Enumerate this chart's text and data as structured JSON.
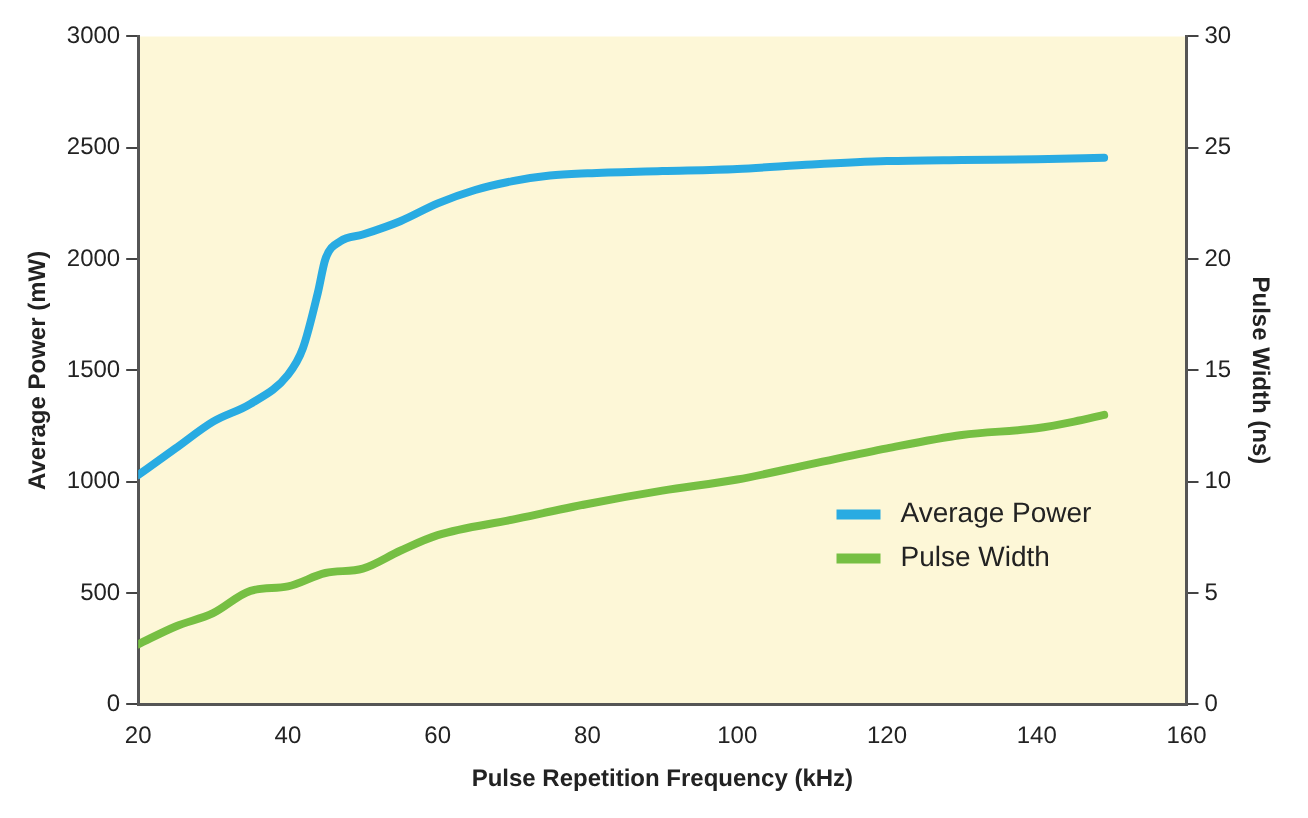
{
  "chart_data": {
    "type": "line",
    "xlabel": "Pulse Repetition Frequency (kHz)",
    "ylabel": "Average Power (mW)",
    "y2label": "Pulse Width (ns)",
    "xlim": [
      20,
      160
    ],
    "xticks": [
      20,
      40,
      60,
      80,
      100,
      120,
      140,
      160
    ],
    "ylim": [
      0,
      3000
    ],
    "yticks": [
      0,
      500,
      1000,
      1500,
      2000,
      2500,
      3000
    ],
    "y2lim": [
      0,
      30
    ],
    "y2ticks": [
      0,
      5,
      10,
      15,
      20,
      25,
      30
    ],
    "legend": "bottom right",
    "grid": false,
    "marker": "none",
    "line_style": "solid",
    "series": [
      {
        "name": "Average Power",
        "color": "#29abe2",
        "x": [
          20,
          25,
          30,
          35,
          40,
          42,
          44,
          45,
          47,
          50,
          55,
          60,
          65,
          70,
          75,
          80,
          90,
          100,
          110,
          120,
          130,
          140,
          149
        ],
        "values": [
          1030,
          1150,
          1270,
          1350,
          1480,
          1600,
          1850,
          2000,
          2080,
          2110,
          2170,
          2250,
          2310,
          2350,
          2375,
          2385,
          2395,
          2405,
          2425,
          2440,
          2445,
          2448,
          2455
        ]
      },
      {
        "name": "Pulse Width",
        "color": "#76bf43",
        "axis": "y2",
        "x": [
          20,
          25,
          30,
          35,
          40,
          45,
          50,
          55,
          60,
          70,
          80,
          90,
          100,
          110,
          120,
          130,
          140,
          145,
          149
        ],
        "values": [
          2.7,
          3.5,
          4.1,
          5.1,
          5.3,
          5.9,
          6.1,
          6.9,
          7.6,
          8.3,
          9.0,
          9.6,
          10.1,
          10.8,
          11.5,
          12.1,
          12.4,
          12.7,
          13.0
        ]
      }
    ]
  }
}
